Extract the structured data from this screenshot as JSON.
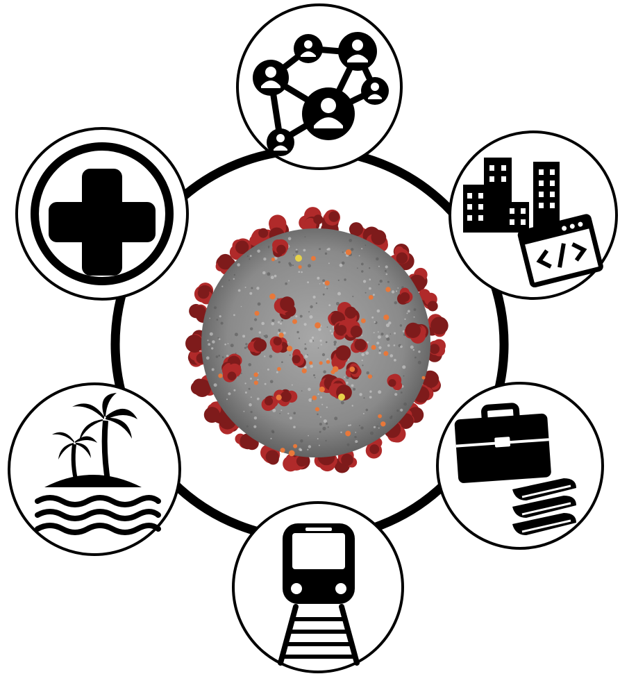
{
  "diagram": {
    "center": {
      "icon": "coronavirus-icon",
      "colors": {
        "body": "#8f8f8f",
        "body_dark": "#5a5a5a",
        "spike": "#b02a2a",
        "spike_dark": "#7e1b1b",
        "protein_orange": "#e8783a",
        "protein_yellow": "#e6d24a"
      }
    },
    "nodes": [
      {
        "id": "social-network",
        "icon": "people-network-icon"
      },
      {
        "id": "tech-industry",
        "icon": "city-code-icon"
      },
      {
        "id": "education-work",
        "icon": "briefcase-books-icon"
      },
      {
        "id": "transport",
        "icon": "train-icon"
      },
      {
        "id": "tourism",
        "icon": "palm-island-icon"
      },
      {
        "id": "healthcare",
        "icon": "medical-cross-icon"
      }
    ],
    "colors": {
      "stroke": "#000000",
      "node_fill": "#ffffff"
    }
  }
}
